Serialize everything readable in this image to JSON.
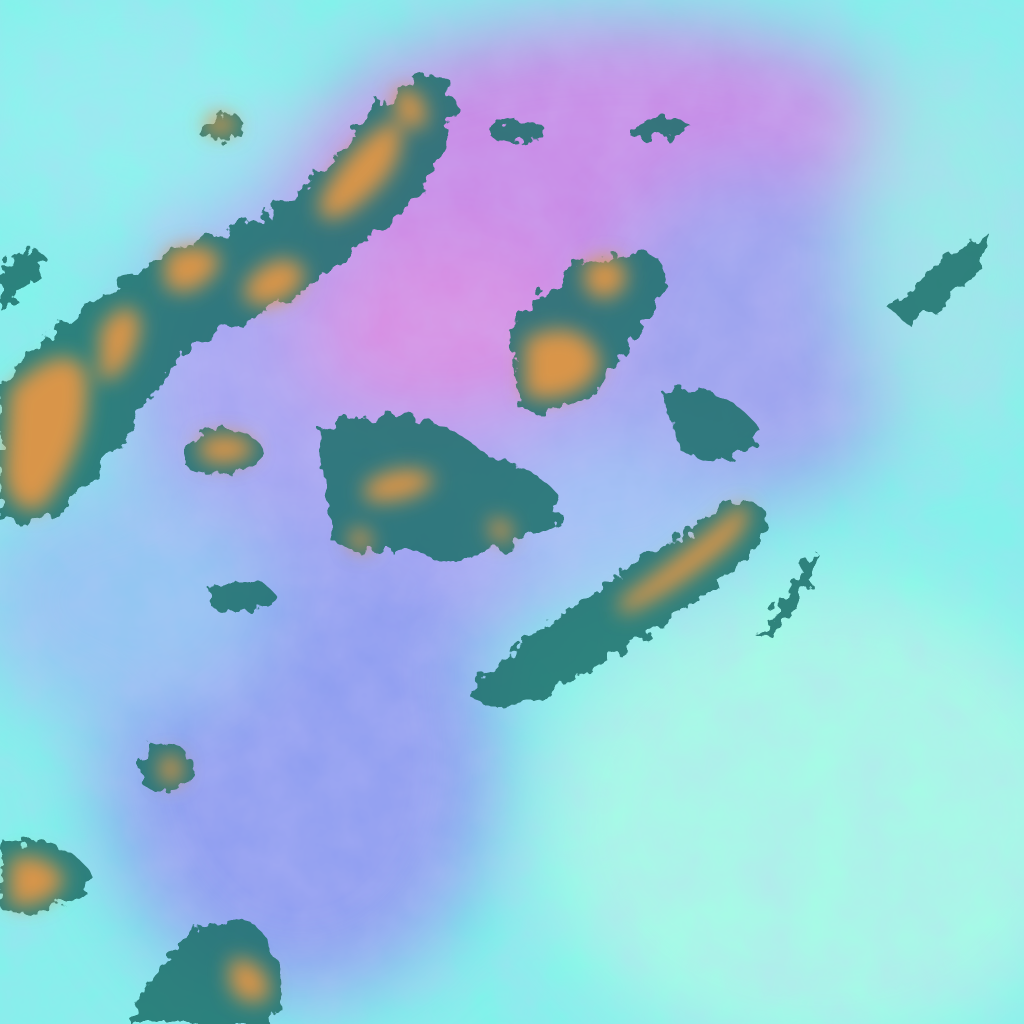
{
  "image": {
    "kind": "false-color satellite imagery",
    "colors": {
      "haze_cyan": "#7ff4ea",
      "haze_blue": "#8fa8f0",
      "haze_magenta": "#d88ae0",
      "cloud_orange": "#d9954a",
      "cloud_edge_teal": "#1f6f6a",
      "bright_ground": "#a8fbe8"
    }
  }
}
